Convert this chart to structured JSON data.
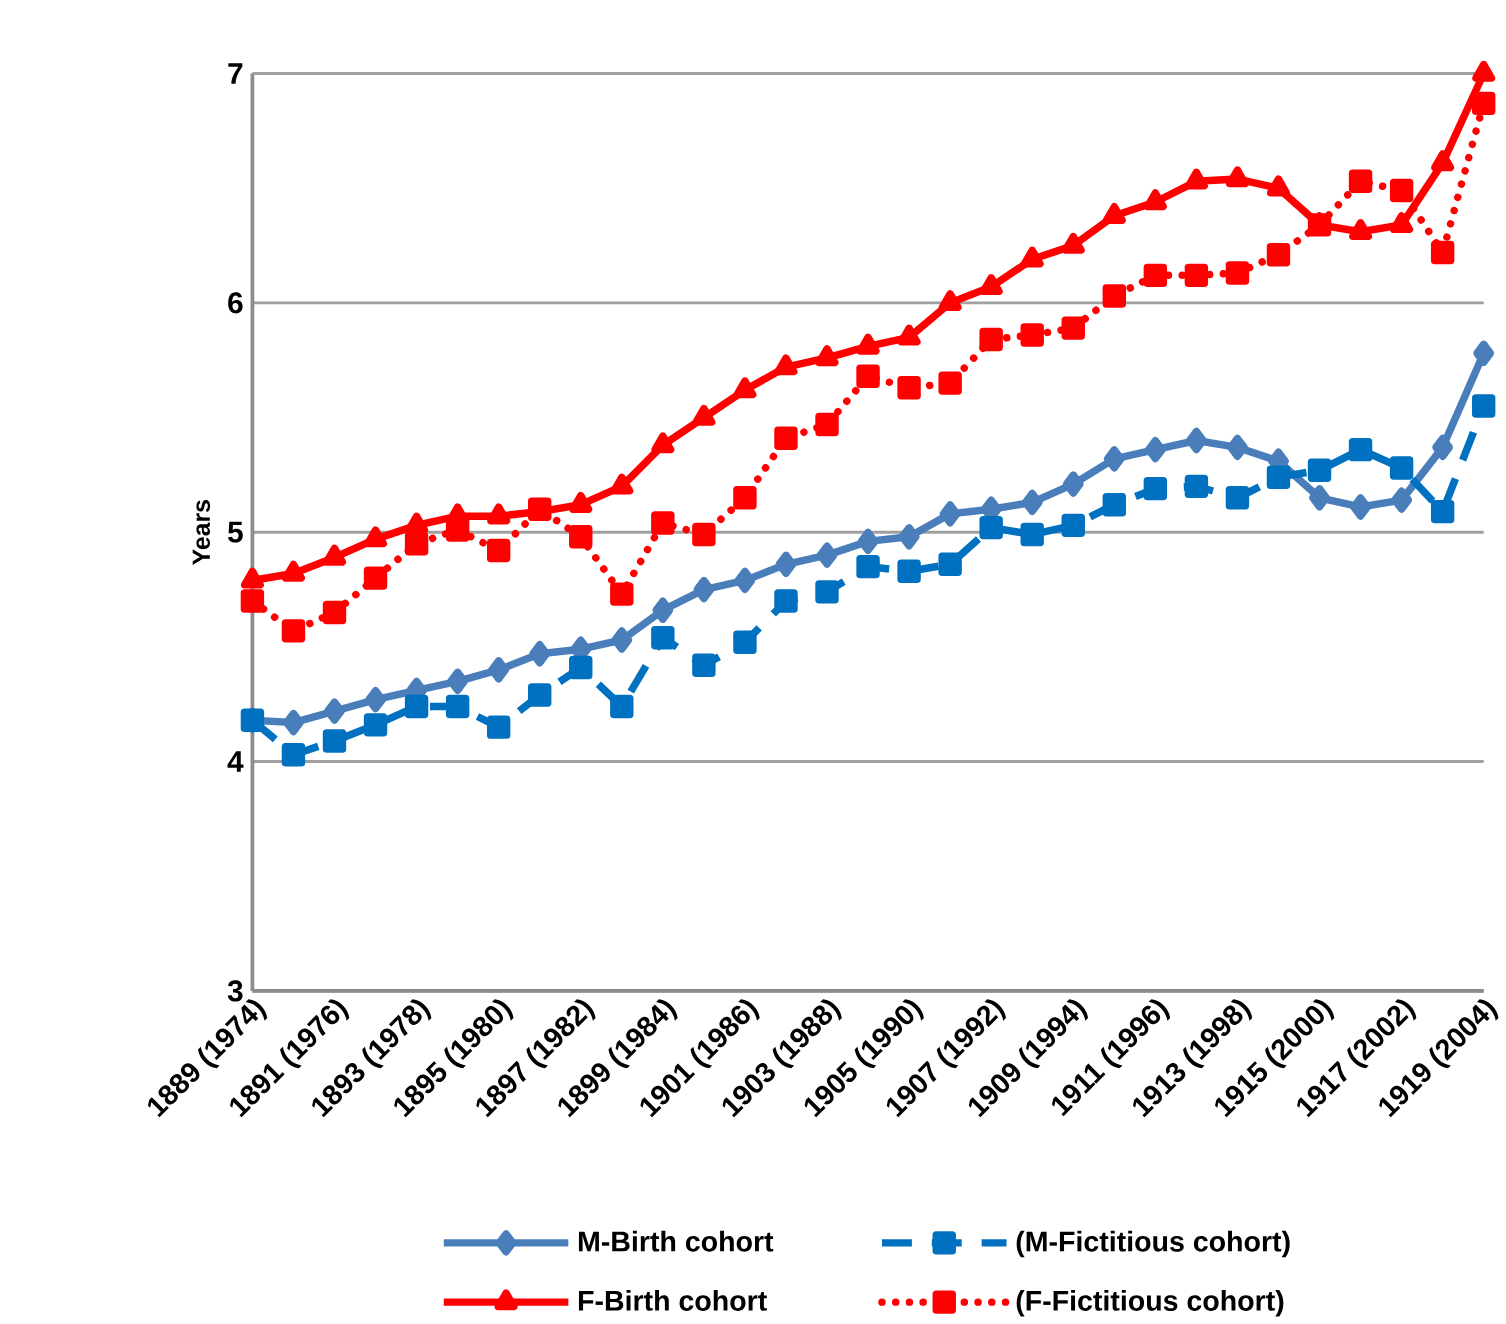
{
  "chart_data": {
    "type": "line",
    "ylabel": "Years",
    "categories": [
      "1889 (1974)",
      null,
      "1891 (1976)",
      null,
      "1893 (1978)",
      null,
      "1895 (1980)",
      null,
      "1897 (1982)",
      null,
      "1899 (1984)",
      null,
      "1901 (1986)",
      null,
      "1903 (1988)",
      null,
      "1905 (1990)",
      null,
      "1907 (1992)",
      null,
      "1909 (1994)",
      null,
      "1911 (1996)",
      null,
      "1913 (1998)",
      null,
      "1915 (2000)",
      null,
      "1917 (2002)",
      null,
      "1919 (2004)"
    ],
    "series": [
      {
        "name": "M-Birth cohort",
        "color": "#4a7ebb",
        "marker": "diamond",
        "line_style": "solid",
        "values": [
          4.18,
          4.17,
          4.22,
          4.27,
          4.31,
          4.35,
          4.4,
          4.47,
          4.49,
          4.53,
          4.66,
          4.75,
          4.79,
          4.86,
          4.9,
          4.96,
          4.98,
          5.08,
          5.1,
          5.13,
          5.21,
          5.32,
          5.36,
          5.4,
          5.37,
          5.31,
          5.15,
          5.11,
          5.14,
          5.37,
          5.78
        ]
      },
      {
        "name": "(M-Fictitious cohort)",
        "color": "#0070c0",
        "marker": "square",
        "line_style": "dashed",
        "values": [
          4.18,
          4.03,
          4.09,
          4.16,
          4.24,
          4.24,
          4.15,
          4.29,
          4.41,
          4.24,
          4.54,
          4.42,
          4.52,
          4.7,
          4.74,
          4.85,
          4.83,
          4.86,
          5.02,
          4.99,
          5.03,
          5.12,
          5.19,
          5.2,
          5.15,
          5.24,
          5.27,
          5.36,
          5.28,
          5.09,
          5.55
        ]
      },
      {
        "name": "F-Birth cohort",
        "color": "#ff0000",
        "marker": "triangle",
        "line_style": "solid",
        "values": [
          4.79,
          4.82,
          4.89,
          4.97,
          5.03,
          5.07,
          5.07,
          5.09,
          5.12,
          5.2,
          5.38,
          5.5,
          5.62,
          5.72,
          5.76,
          5.81,
          5.85,
          6.0,
          6.07,
          6.19,
          6.25,
          6.38,
          6.44,
          6.53,
          6.54,
          6.5,
          6.34,
          6.31,
          6.34,
          6.61,
          7.0
        ]
      },
      {
        "name": "(F-Fictitious cohort)",
        "color": "#ff0000",
        "marker": "square",
        "line_style": "dotted",
        "values": [
          4.7,
          4.57,
          4.65,
          4.8,
          4.95,
          5.01,
          4.92,
          5.1,
          4.98,
          4.73,
          5.04,
          4.99,
          5.15,
          5.41,
          5.47,
          5.68,
          5.63,
          5.65,
          5.84,
          5.86,
          5.89,
          6.03,
          6.12,
          6.12,
          6.13,
          6.21,
          6.34,
          6.53,
          6.49,
          6.22,
          6.87
        ]
      }
    ],
    "ylim": [
      3,
      7
    ],
    "yticks": [
      3,
      4,
      5,
      6,
      7
    ],
    "grid": "y",
    "legend": "bottom"
  }
}
